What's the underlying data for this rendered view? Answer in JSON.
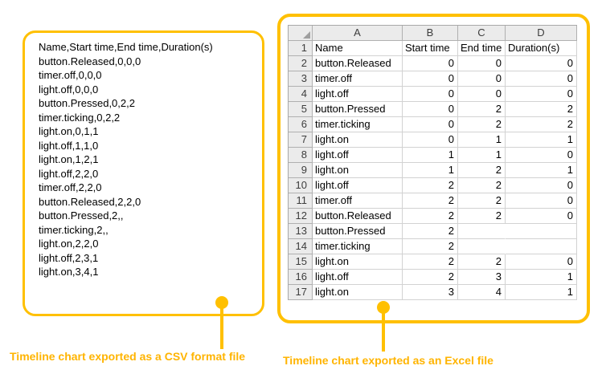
{
  "colors": {
    "accent": "#FFC000",
    "caption": "#FFB400"
  },
  "captions": {
    "csv": "Timeline chart exported as a CSV format file",
    "excel": "Timeline chart exported as an Excel file"
  },
  "csv_panel": {
    "lines": [
      "Name,Start time,End time,Duration(s)",
      "button.Released,0,0,0",
      "timer.off,0,0,0",
      "light.off,0,0,0",
      "button.Pressed,0,2,2",
      "timer.ticking,0,2,2",
      "light.on,0,1,1",
      "light.off,1,1,0",
      "light.on,1,2,1",
      "light.off,2,2,0",
      "timer.off,2,2,0",
      "button.Released,2,2,0",
      "button.Pressed,2,,",
      "timer.ticking,2,,",
      "light.on,2,2,0",
      "light.off,2,3,1",
      "light.on,3,4,1"
    ]
  },
  "excel_panel": {
    "column_headers": [
      "A",
      "B",
      "C",
      "D"
    ],
    "rows": [
      {
        "num": "1",
        "cells": [
          "Name",
          "Start time",
          "End time",
          "Duration(s)"
        ]
      },
      {
        "num": "2",
        "cells": [
          "button.Released",
          "0",
          "0",
          "0"
        ]
      },
      {
        "num": "3",
        "cells": [
          "timer.off",
          "0",
          "0",
          "0"
        ]
      },
      {
        "num": "4",
        "cells": [
          "light.off",
          "0",
          "0",
          "0"
        ]
      },
      {
        "num": "5",
        "cells": [
          "button.Pressed",
          "0",
          "2",
          "2"
        ]
      },
      {
        "num": "6",
        "cells": [
          "timer.ticking",
          "0",
          "2",
          "2"
        ]
      },
      {
        "num": "7",
        "cells": [
          "light.on",
          "0",
          "1",
          "1"
        ]
      },
      {
        "num": "8",
        "cells": [
          "light.off",
          "1",
          "1",
          "0"
        ]
      },
      {
        "num": "9",
        "cells": [
          "light.on",
          "1",
          "2",
          "1"
        ]
      },
      {
        "num": "10",
        "cells": [
          "light.off",
          "2",
          "2",
          "0"
        ]
      },
      {
        "num": "11",
        "cells": [
          "timer.off",
          "2",
          "2",
          "0"
        ]
      },
      {
        "num": "12",
        "cells": [
          "button.Released",
          "2",
          "2",
          "0"
        ]
      },
      {
        "num": "13",
        "cells": [
          "button.Pressed",
          "2",
          "",
          ""
        ]
      },
      {
        "num": "14",
        "cells": [
          "timer.ticking",
          "2",
          "",
          ""
        ]
      },
      {
        "num": "15",
        "cells": [
          "light.on",
          "2",
          "2",
          "0"
        ]
      },
      {
        "num": "16",
        "cells": [
          "light.off",
          "2",
          "3",
          "1"
        ]
      },
      {
        "num": "17",
        "cells": [
          "light.on",
          "3",
          "4",
          "1"
        ]
      }
    ]
  }
}
